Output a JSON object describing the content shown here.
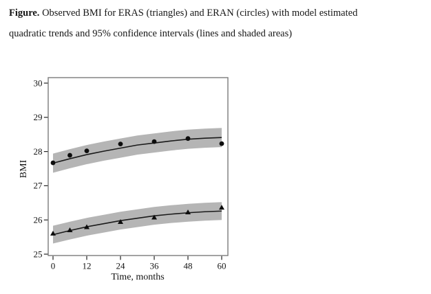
{
  "caption": {
    "label": "Figure.",
    "line1": "Observed BMI for ERAS (triangles) and ERAN (circles) with model estimated",
    "line2": "quadratic trends and 95% confidence intervals (lines and shaded areas)"
  },
  "chart_data": {
    "type": "line",
    "title": "",
    "xlabel": "Time, months",
    "ylabel": "BMI",
    "x_ticks": [
      0,
      12,
      24,
      36,
      48,
      60
    ],
    "y_ticks": [
      25,
      26,
      27,
      28,
      29,
      30
    ],
    "xlim": [
      0,
      60
    ],
    "ylim": [
      25,
      30
    ],
    "grid": false,
    "legend": "none (described in caption)",
    "colors": {
      "band": "#b5b5b5",
      "trend_line": "#1a1a1a",
      "marker": "#0d0d0d",
      "frame": "#7a7a7a",
      "tick": "#222222"
    },
    "series": [
      {
        "name": "ERAN",
        "marker": "circle",
        "observed": {
          "x": [
            0,
            6,
            12,
            24,
            36,
            48,
            60
          ],
          "y": [
            27.67,
            27.89,
            28.02,
            28.22,
            28.29,
            28.38,
            28.23
          ]
        },
        "trend": {
          "x": [
            0,
            6,
            12,
            18,
            24,
            30,
            36,
            42,
            48,
            54,
            60
          ],
          "y": [
            27.66,
            27.79,
            27.91,
            28.01,
            28.1,
            28.19,
            28.25,
            28.31,
            28.36,
            28.39,
            28.41
          ]
        },
        "ci_halfwidth": 0.28
      },
      {
        "name": "ERAS",
        "marker": "triangle",
        "observed": {
          "x": [
            0,
            6,
            12,
            24,
            36,
            48,
            60
          ],
          "y": [
            25.6,
            25.7,
            25.79,
            25.94,
            26.07,
            26.22,
            26.36
          ]
        },
        "trend": {
          "x": [
            0,
            6,
            12,
            18,
            24,
            30,
            36,
            42,
            48,
            54,
            60
          ],
          "y": [
            25.57,
            25.69,
            25.8,
            25.89,
            25.98,
            26.05,
            26.12,
            26.17,
            26.21,
            26.24,
            26.26
          ]
        },
        "ci_halfwidth": 0.26
      }
    ]
  }
}
